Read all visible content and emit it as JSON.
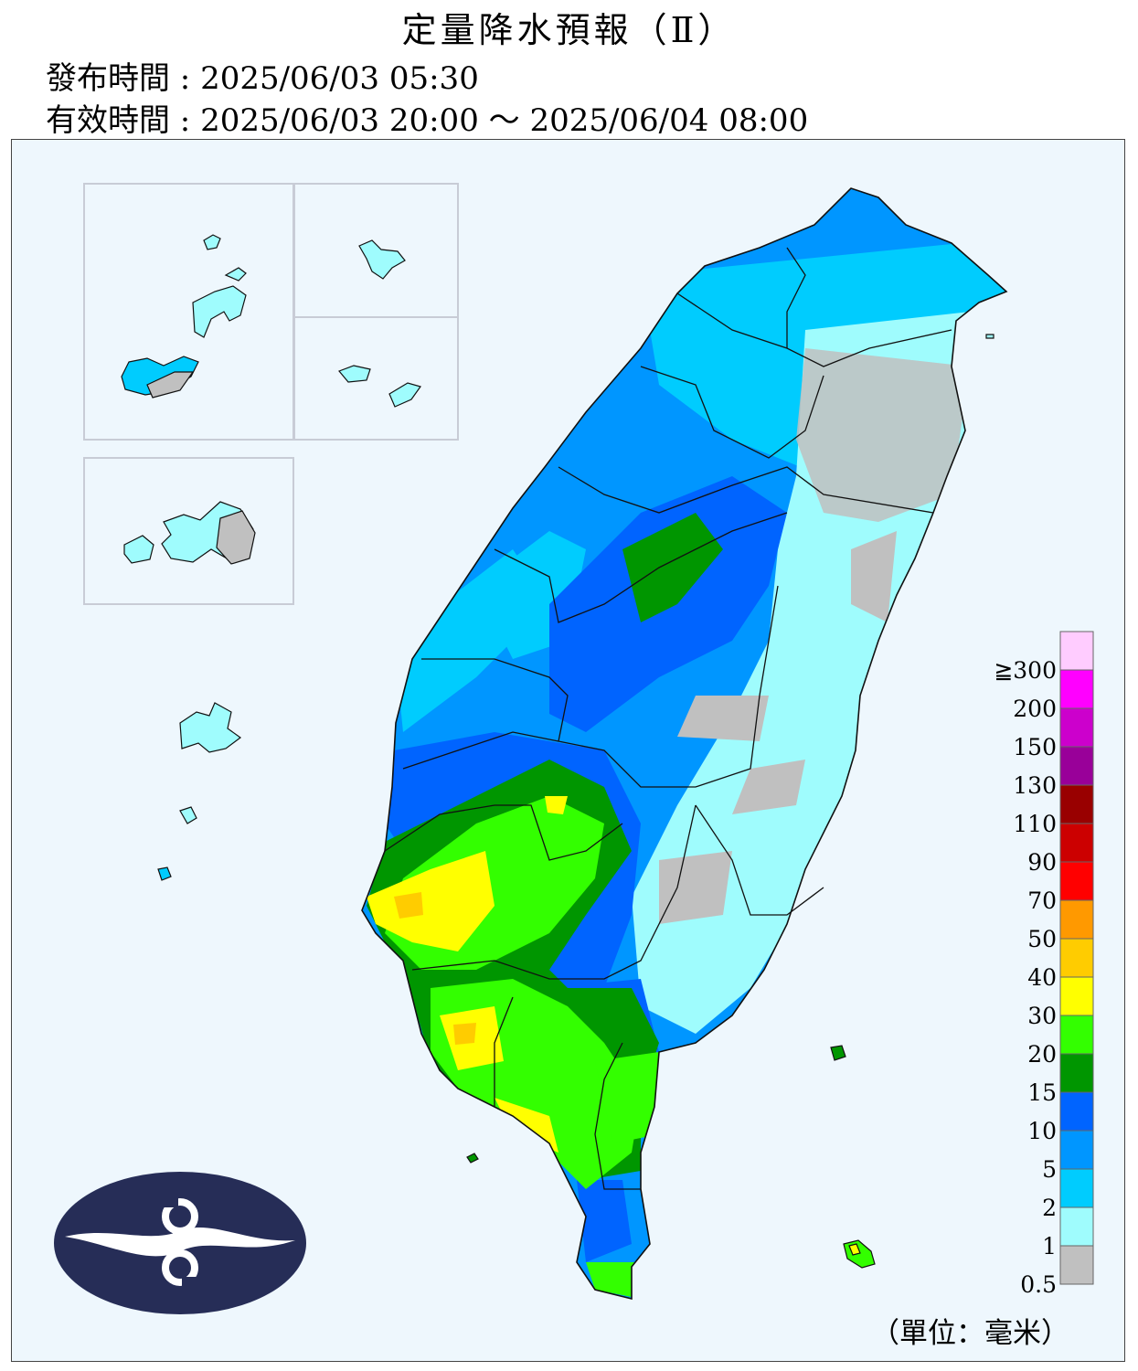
{
  "header": {
    "title": "定量降水預報（Ⅱ）",
    "issue_time": "發布時間 : 2025/06/03 05:30",
    "valid_time": "有效時間 : 2025/06/03 20:00 ～ 2025/06/04 08:00"
  },
  "legend": {
    "unit_label": "（單位：毫米）",
    "classes": [
      {
        "label": "0.5",
        "color": "#c0c0c0"
      },
      {
        "label": "1",
        "color": "#9ffcfd"
      },
      {
        "label": "2",
        "color": "#00ccfe"
      },
      {
        "label": "5",
        "color": "#0096ff"
      },
      {
        "label": "10",
        "color": "#0064ff"
      },
      {
        "label": "15",
        "color": "#009600"
      },
      {
        "label": "20",
        "color": "#33ff00"
      },
      {
        "label": "30",
        "color": "#ffff00"
      },
      {
        "label": "40",
        "color": "#ffcc00"
      },
      {
        "label": "50",
        "color": "#ff9900"
      },
      {
        "label": "70",
        "color": "#ff0000"
      },
      {
        "label": "90",
        "color": "#cc0000"
      },
      {
        "label": "110",
        "color": "#990000"
      },
      {
        "label": "130",
        "color": "#990099"
      },
      {
        "label": "150",
        "color": "#cc00cc"
      },
      {
        "label": "200",
        "color": "#ff00ff"
      },
      {
        "label": "≧300",
        "color": "#ffccff"
      }
    ]
  },
  "colors": {
    "background": "#eef7fd",
    "logo": "#262d57"
  },
  "icons": [
    "cwa-logo"
  ]
}
